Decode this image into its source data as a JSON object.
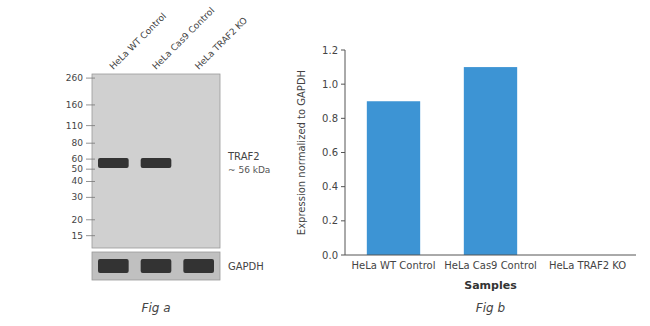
{
  "chart_data": [
    {
      "type": "western_blot",
      "title": "Fig a",
      "categories": [
        "HeLa WT Control",
        "HeLa Cas9 Control",
        "HeLa TRAF2 KO"
      ],
      "log": "y",
      "ylim": [
        12,
        280
      ],
      "yticks": [
        260,
        160,
        110,
        80,
        60,
        50,
        40,
        30,
        20,
        15
      ],
      "series": [
        {
          "name": "TRAF2",
          "values": [
            56,
            56,
            null
          ],
          "color": "#333333"
        }
      ],
      "annotations": [
        "~ 56 kDa",
        "GAPDH"
      ]
    },
    {
      "type": "bar",
      "title": "Fig b",
      "categories": [
        "HeLa WT Control",
        "HeLa Cas9 Control",
        "HeLa TRAF2 KO"
      ],
      "values": [
        0.9,
        1.1,
        0.0
      ],
      "color": "#3d94d4",
      "xlabel": "Samples",
      "ylabel": "Expression normalized to GAPDH",
      "ylim": [
        0,
        1.2
      ],
      "yticks": [
        {
          "value": 0,
          "label": "0.0"
        },
        0.2,
        0.4,
        0.6,
        0.8,
        {
          "value": 1.0,
          "label": "1.0"
        },
        1.2
      ],
      "grid": false
    }
  ]
}
